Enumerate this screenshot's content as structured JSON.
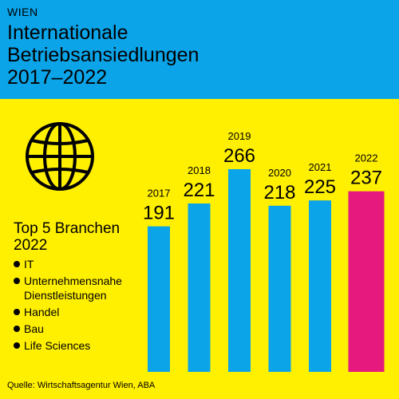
{
  "header": {
    "kicker": "WIEN",
    "title": "Internationale\nBetriebsansiedlungen\n2017–2022",
    "background_color": "#0BA4E8"
  },
  "page": {
    "background_color": "#FFEF00"
  },
  "branchen": {
    "title": "Top 5 Branchen\n2022",
    "items": [
      {
        "label": "IT"
      },
      {
        "label": "Unternehmensnahe Dienstleistungen"
      },
      {
        "label": "Handel"
      },
      {
        "label": "Bau"
      },
      {
        "label": "Life Sciences"
      }
    ]
  },
  "icons": {
    "globe": "globe-icon"
  },
  "source": "Quelle: Wirtschaftsagentur Wien, ABA",
  "chart_data": {
    "type": "bar",
    "categories": [
      "2017",
      "2018",
      "2019",
      "2020",
      "2021",
      "2022"
    ],
    "values": [
      191,
      221,
      266,
      218,
      225,
      237
    ],
    "title": "",
    "xlabel": "",
    "ylabel": "",
    "ylim": [
      0,
      266
    ],
    "grid": false,
    "legend": "none",
    "bar_color": "#0BA4E8",
    "highlight_color": "#E5197E",
    "highlight_category": "2022"
  }
}
